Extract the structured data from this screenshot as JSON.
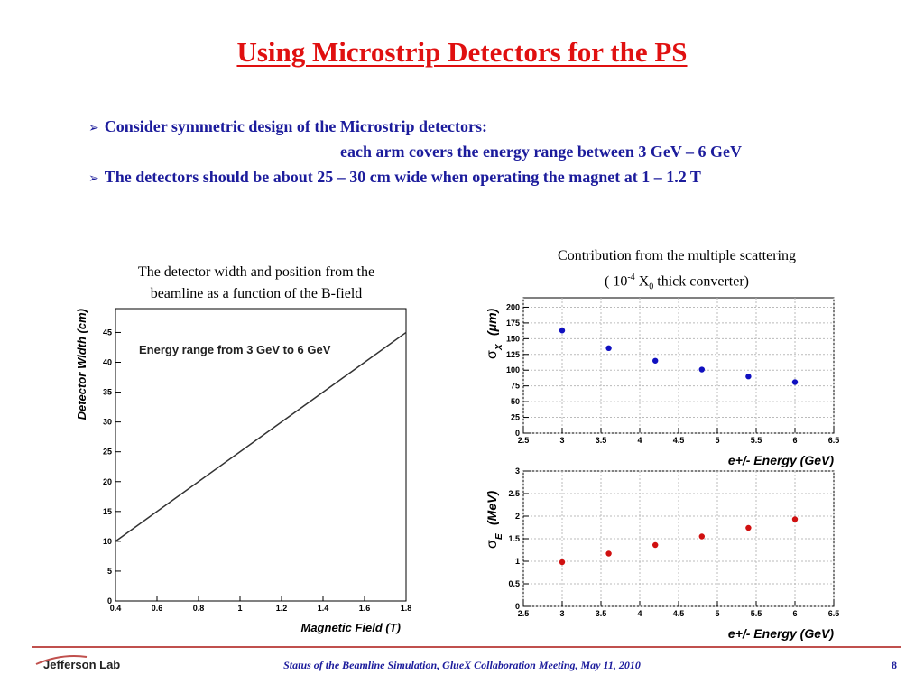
{
  "slide": {
    "title": "Using Microstrip Detectors for the PS",
    "bullets": {
      "b1_line1": "Consider symmetric design of the Microstrip detectors:",
      "b1_line2": "each arm covers the energy range between 3 GeV – 6 GeV",
      "b2": "The detectors should be about 25 – 30 cm wide when operating the magnet at 1 – 1.2 T"
    },
    "captions": {
      "left_line1": "The detector width and position from the",
      "left_line2": "beamline as a function of the B-field",
      "right_line1": "Contribution from the multiple scattering",
      "right_line2_pre": "( 10",
      "right_line2_sup": "-4",
      "right_line2_mid": " X",
      "right_line2_sub": "0",
      "right_line2_post": " thick converter)"
    }
  },
  "footer": {
    "logo": "Jefferson Lab",
    "text": "Status of the Beamline Simulation,  GlueX  Collaboration Meeting,  May 11, 2010",
    "page": "8"
  },
  "colors": {
    "title": "#e01010",
    "text": "#1c1c9c",
    "blue_points": "#1010c0",
    "red_points": "#d01010",
    "footer_line": "#c0504d"
  },
  "chart_data": [
    {
      "type": "line",
      "x": [
        0.4,
        1.8
      ],
      "y": [
        10,
        45
      ],
      "xlim": [
        0.4,
        1.8
      ],
      "ylim": [
        0,
        49
      ],
      "xticks": [
        "0.4",
        "0.6",
        "0.8",
        "1",
        "1.2",
        "1.4",
        "1.6",
        "1.8"
      ],
      "yticks": [
        "0",
        "5",
        "10",
        "15",
        "20",
        "25",
        "30",
        "35",
        "40",
        "45"
      ],
      "xlabel": "Magnetic Field (T)",
      "ylabel": "Detector Width (cm)",
      "annotation": "Energy range from 3 GeV to 6 GeV",
      "grid": false
    },
    {
      "type": "scatter",
      "x": [
        3,
        3.6,
        4.2,
        4.8,
        5.4,
        6
      ],
      "y": [
        163,
        135,
        115,
        101,
        90,
        81
      ],
      "xlim": [
        2.5,
        6.5
      ],
      "ylim": [
        0,
        215
      ],
      "xticks": [
        "2.5",
        "3",
        "3.5",
        "4",
        "4.5",
        "5",
        "5.5",
        "6",
        "6.5"
      ],
      "yticks": [
        "0",
        "25",
        "50",
        "75",
        "100",
        "125",
        "150",
        "175",
        "200"
      ],
      "xlabel": "e+/-  Energy (GeV)",
      "ylabel_main": "σ",
      "ylabel_sub": "X",
      "ylabel_unit": "(μm)",
      "color": "#1010c0",
      "grid": true
    },
    {
      "type": "scatter",
      "x": [
        3,
        3.6,
        4.2,
        4.8,
        5.4,
        6
      ],
      "y": [
        0.98,
        1.17,
        1.36,
        1.55,
        1.74,
        1.93
      ],
      "xlim": [
        2.5,
        6.5
      ],
      "ylim": [
        0,
        3
      ],
      "xticks": [
        "2.5",
        "3",
        "3.5",
        "4",
        "4.5",
        "5",
        "5.5",
        "6",
        "6.5"
      ],
      "yticks": [
        "0",
        "0.5",
        "1",
        "1.5",
        "2",
        "2.5",
        "3"
      ],
      "xlabel": "e+/-  Energy (GeV)",
      "ylabel_main": "σ",
      "ylabel_sub": "E",
      "ylabel_unit": "(MeV)",
      "color": "#d01010",
      "grid": true
    }
  ]
}
